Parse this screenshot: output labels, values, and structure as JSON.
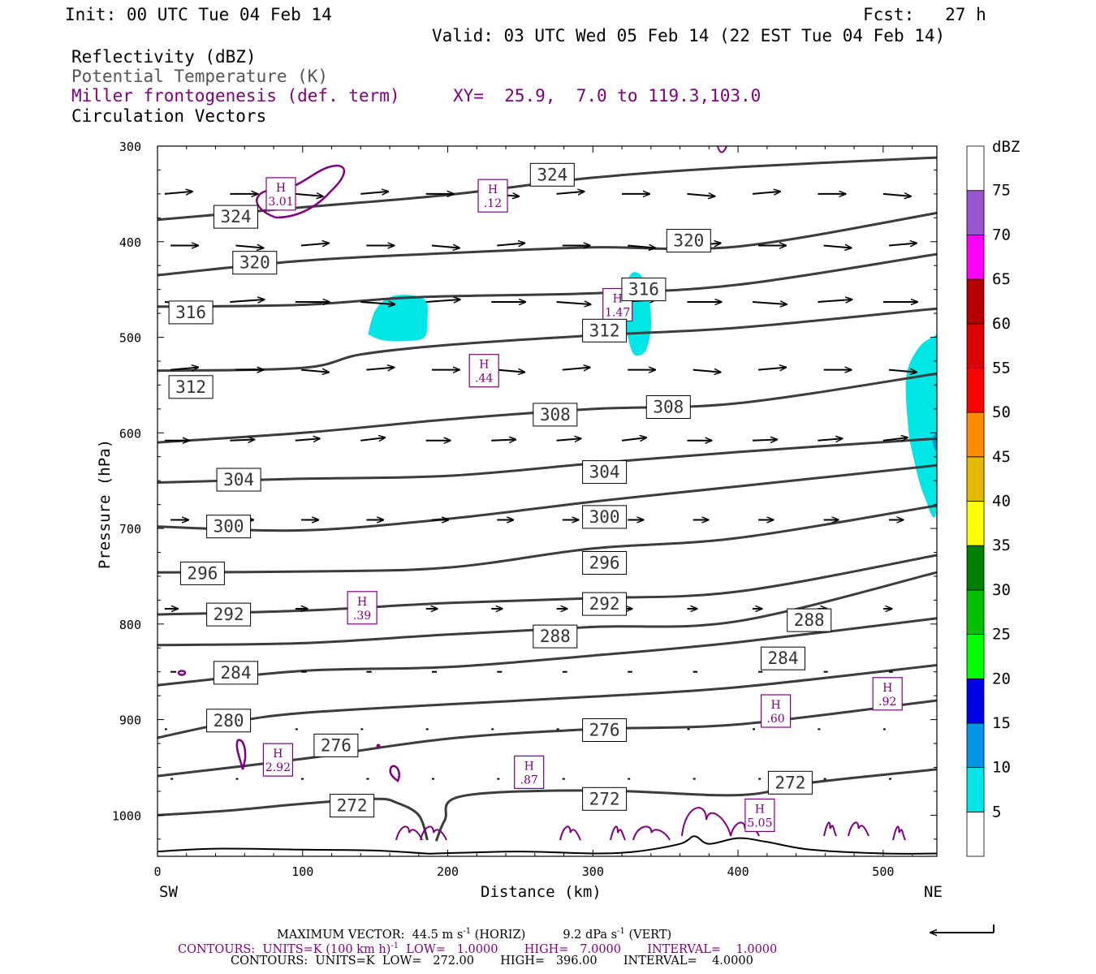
{
  "header": {
    "init": "Init: 00 UTC Tue 04 Feb 14",
    "fcst": "Fcst:   27 h",
    "valid": "Valid: 03 UTC Wed 05 Feb 14 (22 EST Tue 04 Feb 14)"
  },
  "legend": {
    "reflectivity": "Reflectivity (dBZ)",
    "theta": "Potential Temperature (K)",
    "miller": "Miller frontogenesis (def. term)",
    "xy": "XY=  25.9,  7.0 to 119.3,103.0",
    "vectors": "Circulation Vectors"
  },
  "colors": {
    "theta_line": "#3c3c3c",
    "miller": "#800080",
    "refl_5": "#00e5e5",
    "refl_10": "#0096e6"
  },
  "colorbar": {
    "unit": "dBZ",
    "levels": [
      "5",
      "10",
      "15",
      "20",
      "25",
      "30",
      "35",
      "40",
      "45",
      "50",
      "55",
      "60",
      "65",
      "70",
      "75"
    ],
    "colors": [
      "#ffffff",
      "#00e5e5",
      "#0096e6",
      "#0000e6",
      "#00ff00",
      "#00c000",
      "#008000",
      "#ffff00",
      "#e6b800",
      "#ff8c00",
      "#ff0000",
      "#dd0000",
      "#b40000",
      "#ff00ff",
      "#9955cc",
      "#ffffff"
    ]
  },
  "footer": {
    "max_vector": "MAXIMUM VECTOR:  44.5 m s",
    "max_vector_sup": "-1",
    "max_vector_mid": " (HORIZ)          9.2 dPa s",
    "max_vector_sup2": "-1",
    "max_vector_end": " (VERT)",
    "contours1_a": "CONTOURS:  UNITS=K (100 km h)",
    "contours1_sup": "-1",
    "contours1_b": "  LOW=   1.0000       HIGH=   7.0000       INTERVAL=    1.0000",
    "contours2": "CONTOURS:  UNITS=K  LOW=   272.00       HIGH=   396.00       INTERVAL=    4.0000"
  },
  "chart_data": {
    "type": "line",
    "title": "",
    "xlabel": "Distance (km)",
    "ylabel": "Pressure (hPa)",
    "xlim": [
      0,
      537
    ],
    "ylim": [
      1043,
      300
    ],
    "x_ticks": [
      "0",
      "100",
      "200",
      "300",
      "400",
      "500"
    ],
    "y_ticks": [
      "300",
      "400",
      "500",
      "600",
      "700",
      "800",
      "900",
      "1000"
    ],
    "x_endpoints": {
      "left": "SW",
      "right": "NE"
    },
    "theta_isentropes": [
      {
        "name": "324",
        "points": [
          [
            0,
            377
          ],
          [
            100,
            364
          ],
          [
            200,
            351
          ],
          [
            300,
            333
          ],
          [
            400,
            322
          ],
          [
            537,
            312
          ]
        ]
      },
      {
        "name": "320",
        "points": [
          [
            0,
            435
          ],
          [
            100,
            420
          ],
          [
            200,
            412
          ],
          [
            300,
            406
          ],
          [
            400,
            405
          ],
          [
            537,
            370
          ]
        ]
      },
      {
        "name": "316",
        "points": [
          [
            0,
            468
          ],
          [
            100,
            466
          ],
          [
            180,
            458
          ],
          [
            300,
            454
          ],
          [
            400,
            445
          ],
          [
            537,
            413
          ]
        ]
      },
      {
        "name": "312",
        "points": [
          [
            0,
            535
          ],
          [
            100,
            532
          ],
          [
            140,
            518
          ],
          [
            200,
            508
          ],
          [
            300,
            498
          ],
          [
            400,
            490
          ],
          [
            537,
            470
          ]
        ]
      },
      {
        "name": "308",
        "points": [
          [
            0,
            610
          ],
          [
            100,
            600
          ],
          [
            200,
            586
          ],
          [
            300,
            575
          ],
          [
            400,
            569
          ],
          [
            537,
            538
          ]
        ]
      },
      {
        "name": "304",
        "points": [
          [
            0,
            652
          ],
          [
            100,
            648
          ],
          [
            200,
            645
          ],
          [
            300,
            632
          ],
          [
            400,
            620
          ],
          [
            537,
            606
          ]
        ]
      },
      {
        "name": "300",
        "points": [
          [
            0,
            698
          ],
          [
            100,
            702
          ],
          [
            200,
            690
          ],
          [
            300,
            672
          ],
          [
            400,
            656
          ],
          [
            537,
            634
          ]
        ]
      },
      {
        "name": "296",
        "points": [
          [
            0,
            746
          ],
          [
            100,
            745
          ],
          [
            200,
            741
          ],
          [
            300,
            721
          ],
          [
            400,
            710
          ],
          [
            537,
            676
          ]
        ]
      },
      {
        "name": "292",
        "points": [
          [
            0,
            790
          ],
          [
            100,
            786
          ],
          [
            200,
            778
          ],
          [
            300,
            773
          ],
          [
            400,
            766
          ],
          [
            537,
            728
          ]
        ]
      },
      {
        "name": "288",
        "points": [
          [
            0,
            822
          ],
          [
            100,
            820
          ],
          [
            200,
            811
          ],
          [
            300,
            803
          ],
          [
            400,
            797
          ],
          [
            537,
            746
          ]
        ]
      },
      {
        "name": "284",
        "points": [
          [
            0,
            864
          ],
          [
            100,
            849
          ],
          [
            200,
            845
          ],
          [
            300,
            833
          ],
          [
            400,
            819
          ],
          [
            537,
            794
          ]
        ]
      },
      {
        "name": "280",
        "points": [
          [
            0,
            919
          ],
          [
            50,
            903
          ],
          [
            100,
            893
          ],
          [
            200,
            884
          ],
          [
            300,
            876
          ],
          [
            400,
            866
          ],
          [
            537,
            843
          ]
        ]
      },
      {
        "name": "276",
        "points": [
          [
            0,
            959
          ],
          [
            100,
            941
          ],
          [
            200,
            920
          ],
          [
            300,
            910
          ],
          [
            400,
            905
          ],
          [
            537,
            880
          ]
        ]
      },
      {
        "name": "272",
        "points": [
          [
            0,
            1000
          ],
          [
            50,
            995
          ],
          [
            100,
            988
          ],
          [
            150,
            983
          ],
          [
            165,
            987
          ],
          [
            180,
            1000
          ],
          [
            186,
            1026
          ]
        ]
      },
      {
        "name": "272",
        "points": [
          [
            192,
            1027
          ],
          [
            198,
            1005
          ],
          [
            210,
            980
          ],
          [
            300,
            974
          ],
          [
            400,
            979
          ],
          [
            450,
            966
          ],
          [
            537,
            952
          ]
        ]
      }
    ],
    "theta_labels": [
      {
        "text": "324",
        "x": 54,
        "y": 374
      },
      {
        "text": "324",
        "x": 272,
        "y": 330
      },
      {
        "text": "320",
        "x": 67,
        "y": 422
      },
      {
        "text": "320",
        "x": 366,
        "y": 399
      },
      {
        "text": "316",
        "x": 23,
        "y": 474
      },
      {
        "text": "316",
        "x": 335,
        "y": 450
      },
      {
        "text": "312",
        "x": 23,
        "y": 552
      },
      {
        "text": "312",
        "x": 308,
        "y": 493
      },
      {
        "text": "308",
        "x": 274,
        "y": 581
      },
      {
        "text": "308",
        "x": 352,
        "y": 573
      },
      {
        "text": "304",
        "x": 56,
        "y": 649
      },
      {
        "text": "304",
        "x": 308,
        "y": 641
      },
      {
        "text": "300",
        "x": 49,
        "y": 698
      },
      {
        "text": "300",
        "x": 308,
        "y": 688
      },
      {
        "text": "296",
        "x": 31,
        "y": 747
      },
      {
        "text": "296",
        "x": 308,
        "y": 736
      },
      {
        "text": "292",
        "x": 49,
        "y": 790
      },
      {
        "text": "292",
        "x": 308,
        "y": 779
      },
      {
        "text": "288",
        "x": 274,
        "y": 813
      },
      {
        "text": "288",
        "x": 449,
        "y": 796
      },
      {
        "text": "284",
        "x": 54,
        "y": 851
      },
      {
        "text": "284",
        "x": 431,
        "y": 836
      },
      {
        "text": "280",
        "x": 49,
        "y": 901
      },
      {
        "text": "276",
        "x": 123,
        "y": 927
      },
      {
        "text": "276",
        "x": 308,
        "y": 911
      },
      {
        "text": "272",
        "x": 134,
        "y": 990
      },
      {
        "text": "272",
        "x": 308,
        "y": 983
      },
      {
        "text": "272",
        "x": 436,
        "y": 966
      }
    ],
    "frontogenesis_highs": [
      {
        "label": "H",
        "value": "3.01",
        "x": 85,
        "y": 350
      },
      {
        "label": "H",
        "value": ".12",
        "x": 231,
        "y": 352
      },
      {
        "label": "H",
        "value": "1.47",
        "x": 317,
        "y": 466
      },
      {
        "label": "H",
        "value": ".44",
        "x": 225,
        "y": 535
      },
      {
        "label": "H",
        "value": ".39",
        "x": 141,
        "y": 783
      },
      {
        "label": "H",
        "value": "2.92",
        "x": 83,
        "y": 942
      },
      {
        "label": "H",
        "value": ".87",
        "x": 256,
        "y": 955
      },
      {
        "label": "H",
        "value": "5.05",
        "x": 415,
        "y": 1000
      },
      {
        "label": "H",
        "value": ".60",
        "x": 426,
        "y": 891
      },
      {
        "label": "H",
        "value": ".92",
        "x": 503,
        "y": 873
      }
    ],
    "reflectivity_areas": [
      {
        "dbz": 5,
        "points": [
          [
            145,
            497
          ],
          [
            150,
            472
          ],
          [
            160,
            458
          ],
          [
            175,
            456
          ],
          [
            185,
            462
          ],
          [
            186,
            480
          ],
          [
            184,
            500
          ],
          [
            170,
            504
          ],
          [
            155,
            503
          ]
        ]
      },
      {
        "dbz": 5,
        "points": [
          [
            322,
            464
          ],
          [
            325,
            437
          ],
          [
            330,
            432
          ],
          [
            335,
            440
          ],
          [
            339,
            462
          ],
          [
            340,
            490
          ],
          [
            337,
            512
          ],
          [
            332,
            519
          ],
          [
            327,
            515
          ],
          [
            323,
            490
          ]
        ]
      },
      {
        "dbz": 5,
        "points": [
          [
            537,
            497
          ],
          [
            525,
            510
          ],
          [
            516,
            540
          ],
          [
            517,
            590
          ],
          [
            520,
            620
          ],
          [
            528,
            665
          ],
          [
            537,
            677
          ]
        ]
      },
      {
        "dbz": 10,
        "points": [
          [
            537,
            600
          ],
          [
            534,
            605
          ],
          [
            535,
            615
          ],
          [
            537,
            618
          ]
        ]
      }
    ],
    "circulation_vectors": {
      "rows_hpa": [
        350,
        404,
        463,
        534,
        608,
        691,
        784,
        850,
        910,
        962
      ],
      "spacing_km": 45,
      "description_units": "horizontal m s-1, vertical dPa s-1"
    }
  }
}
